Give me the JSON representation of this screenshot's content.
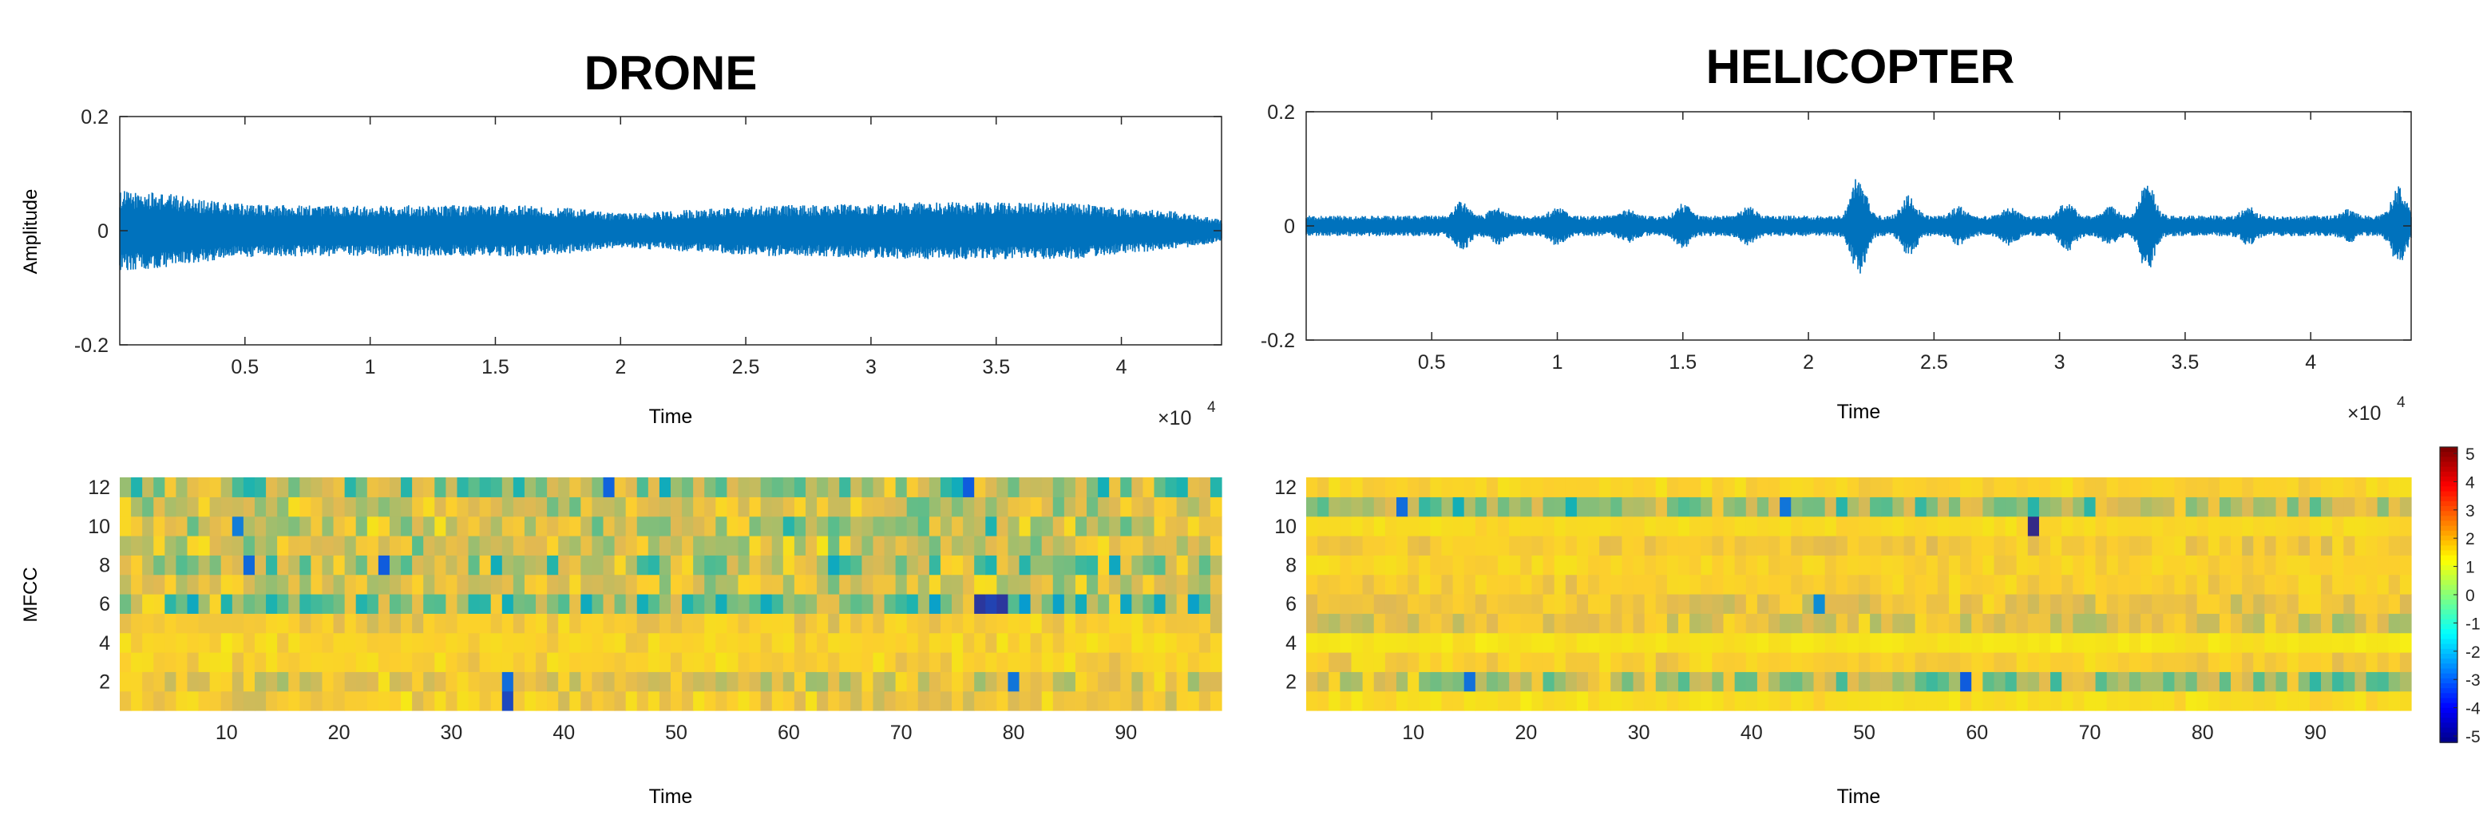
{
  "chart_data": [
    {
      "type": "line",
      "panel": "waveform",
      "title": "DRONE",
      "xlabel": "Time",
      "ylabel": "Amplitude",
      "xlim": [
        0,
        44000
      ],
      "ylim": [
        -0.2,
        0.2
      ],
      "x_exponent": "×10",
      "x_exponent_power": "4",
      "xticks": [
        5000,
        10000,
        15000,
        20000,
        25000,
        30000,
        35000,
        40000
      ],
      "xtick_labels": [
        "0.5",
        "1",
        "1.5",
        "2",
        "2.5",
        "3",
        "3.5",
        "4"
      ],
      "yticks": [
        -0.2,
        0,
        0.2
      ],
      "ytick_labels": [
        "-0.2",
        "0",
        "0.2"
      ],
      "envelope": {
        "x": [
          0,
          2000,
          4000,
          6000,
          8000,
          10000,
          12000,
          14000,
          16000,
          18000,
          20000,
          22000,
          24000,
          26000,
          28000,
          30000,
          32000,
          34000,
          36000,
          38000,
          40000,
          42000,
          44000
        ],
        "amplitude": [
          0.07,
          0.065,
          0.05,
          0.045,
          0.045,
          0.045,
          0.045,
          0.045,
          0.045,
          0.04,
          0.03,
          0.035,
          0.04,
          0.045,
          0.045,
          0.048,
          0.05,
          0.05,
          0.05,
          0.05,
          0.04,
          0.035,
          0.02
        ]
      }
    },
    {
      "type": "line",
      "panel": "waveform",
      "title": "HELICOPTER",
      "xlabel": "Time",
      "ylabel": "",
      "xlim": [
        0,
        44000
      ],
      "ylim": [
        -0.2,
        0.2
      ],
      "x_exponent": "×10",
      "x_exponent_power": "4",
      "xticks": [
        5000,
        10000,
        15000,
        20000,
        25000,
        30000,
        35000,
        40000
      ],
      "xtick_labels": [
        "0.5",
        "1",
        "1.5",
        "2",
        "2.5",
        "3",
        "3.5",
        "4"
      ],
      "yticks": [
        -0.2,
        0,
        0.2
      ],
      "ytick_labels": [
        "-0.2",
        "0",
        "0.2"
      ],
      "base_amplitude": 0.018,
      "bursts": [
        {
          "x": 6200,
          "amp": 0.045
        },
        {
          "x": 7600,
          "amp": 0.035
        },
        {
          "x": 10000,
          "amp": 0.035
        },
        {
          "x": 12800,
          "amp": 0.03
        },
        {
          "x": 15000,
          "amp": 0.04
        },
        {
          "x": 17600,
          "amp": 0.035
        },
        {
          "x": 22000,
          "amp": 0.09
        },
        {
          "x": 24000,
          "amp": 0.055
        },
        {
          "x": 26000,
          "amp": 0.035
        },
        {
          "x": 28000,
          "amp": 0.035
        },
        {
          "x": 30300,
          "amp": 0.045
        },
        {
          "x": 32000,
          "amp": 0.035
        },
        {
          "x": 33500,
          "amp": 0.085
        },
        {
          "x": 37500,
          "amp": 0.035
        },
        {
          "x": 41500,
          "amp": 0.03
        },
        {
          "x": 43500,
          "amp": 0.07
        }
      ]
    },
    {
      "type": "heatmap",
      "panel": "mfcc",
      "title": "",
      "xlabel": "Time",
      "ylabel": "MFCC",
      "xlim": [
        0.5,
        98.5
      ],
      "ylim": [
        0.5,
        12.5
      ],
      "xticks": [
        10,
        20,
        30,
        40,
        50,
        60,
        70,
        80,
        90
      ],
      "xtick_labels": [
        "10",
        "20",
        "30",
        "40",
        "50",
        "60",
        "70",
        "80",
        "90"
      ],
      "yticks": [
        2,
        4,
        6,
        8,
        10,
        12
      ],
      "ytick_labels": [
        "2",
        "4",
        "6",
        "8",
        "10",
        "12"
      ],
      "n_frames": 98,
      "row_means": [
        2.2,
        1.8,
        2.5,
        2.6,
        2.2,
        0.4,
        1.6,
        1.0,
        1.6,
        1.2,
        1.4,
        0.9
      ],
      "row_spread": [
        0.8,
        1.0,
        0.6,
        0.5,
        0.6,
        1.6,
        1.1,
        1.5,
        1.1,
        1.3,
        1.2,
        1.4
      ],
      "notable_cells": [
        {
          "frame": 35,
          "coef": 1,
          "value": -3.5
        },
        {
          "frame": 35,
          "coef": 2,
          "value": -2.8
        },
        {
          "frame": 80,
          "coef": 2,
          "value": -2.6
        },
        {
          "frame": 77,
          "coef": 6,
          "value": -3.8
        },
        {
          "frame": 78,
          "coef": 6,
          "value": -3.6
        },
        {
          "frame": 79,
          "coef": 6,
          "value": -3.8
        },
        {
          "frame": 24,
          "coef": 8,
          "value": -3.2
        },
        {
          "frame": 12,
          "coef": 8,
          "value": -2.9
        },
        {
          "frame": 44,
          "coef": 12,
          "value": -3.0
        },
        {
          "frame": 76,
          "coef": 12,
          "value": -3.2
        },
        {
          "frame": 11,
          "coef": 10,
          "value": -2.4
        }
      ]
    },
    {
      "type": "heatmap",
      "panel": "mfcc",
      "title": "",
      "xlabel": "Time",
      "ylabel": "",
      "xlim": [
        0.5,
        98.5
      ],
      "ylim": [
        0.5,
        12.5
      ],
      "xticks": [
        10,
        20,
        30,
        40,
        50,
        60,
        70,
        80,
        90
      ],
      "xtick_labels": [
        "10",
        "20",
        "30",
        "40",
        "50",
        "60",
        "70",
        "80",
        "90"
      ],
      "yticks": [
        2,
        4,
        6,
        8,
        10,
        12
      ],
      "ytick_labels": [
        "2",
        "4",
        "6",
        "8",
        "10",
        "12"
      ],
      "n_frames": 98,
      "row_means": [
        3.0,
        1.0,
        2.4,
        3.2,
        1.8,
        2.0,
        2.4,
        2.6,
        2.2,
        2.8,
        0.8,
        2.6
      ],
      "row_spread": [
        0.4,
        1.2,
        0.5,
        0.3,
        0.8,
        0.6,
        0.5,
        0.4,
        0.5,
        0.3,
        1.2,
        0.4
      ],
      "notable_cells": [
        {
          "frame": 59,
          "coef": 2,
          "value": -3.2
        },
        {
          "frame": 65,
          "coef": 10,
          "value": -4.5
        },
        {
          "frame": 9,
          "coef": 11,
          "value": -2.8
        },
        {
          "frame": 43,
          "coef": 11,
          "value": -2.6
        },
        {
          "frame": 15,
          "coef": 2,
          "value": -2.7
        },
        {
          "frame": 46,
          "coef": 6,
          "value": -2.0
        }
      ],
      "colorbar": {
        "limits": [
          -5,
          5
        ],
        "ticks": [
          5,
          4,
          3,
          2,
          1,
          0,
          -1,
          -2,
          -3,
          -4,
          -5
        ],
        "tick_labels": [
          "5",
          "4",
          "3",
          "2",
          "1",
          "0",
          "-1",
          "-2",
          "-3",
          "-4",
          "-5"
        ],
        "colormap": "parula-like"
      }
    }
  ],
  "colors": {
    "waveform": "#0072BD",
    "axis": "#262626",
    "tick_text": "#262626",
    "background": "#ffffff"
  }
}
